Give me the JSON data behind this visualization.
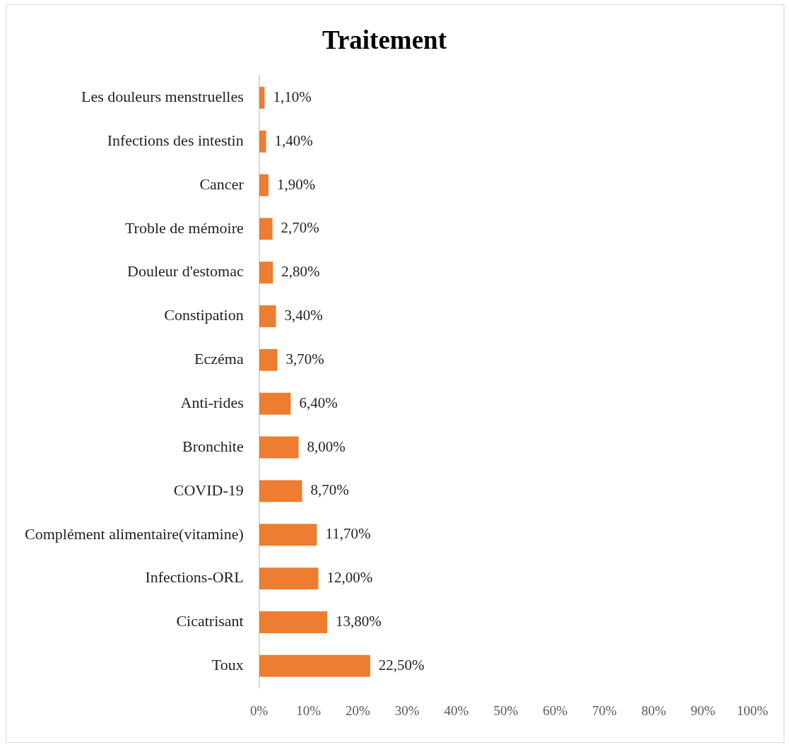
{
  "chart_data": {
    "type": "bar",
    "orientation": "horizontal",
    "title": "Traitement",
    "categories": [
      "Les douleurs menstruelles",
      "Infections des intestin",
      "Cancer",
      "Troble de mémoire",
      "Douleur d'estomac",
      "Constipation",
      "Eczéma",
      "Anti-rides",
      "Bronchite",
      "COVID-19",
      "Complément alimentaire(vitamine)",
      "Infections-ORL",
      "Cicatrisant",
      "Toux"
    ],
    "values": [
      1.1,
      1.4,
      1.9,
      2.7,
      2.8,
      3.4,
      3.7,
      6.4,
      8.0,
      8.7,
      11.7,
      12.0,
      13.8,
      22.5
    ],
    "value_labels": [
      "1,10%",
      "1,40%",
      "1,90%",
      "2,70%",
      "2,80%",
      "3,40%",
      "3,70%",
      "6,40%",
      "8,00%",
      "8,70%",
      "11,70%",
      "12,00%",
      "13,80%",
      "22,50%"
    ],
    "color": "#ed7d31",
    "xlim": [
      0,
      100
    ],
    "xticks": [
      {
        "value": 0,
        "label": "0%"
      },
      {
        "value": 10,
        "label": "10%"
      },
      {
        "value": 20,
        "label": "20%"
      },
      {
        "value": 30,
        "label": "30%"
      },
      {
        "value": 40,
        "label": "40%"
      },
      {
        "value": 50,
        "label": "50%"
      },
      {
        "value": 60,
        "label": "60%"
      },
      {
        "value": 70,
        "label": "70%"
      },
      {
        "value": 80,
        "label": "80%"
      },
      {
        "value": 90,
        "label": "90%"
      },
      {
        "value": 100,
        "label": "100%"
      }
    ]
  }
}
